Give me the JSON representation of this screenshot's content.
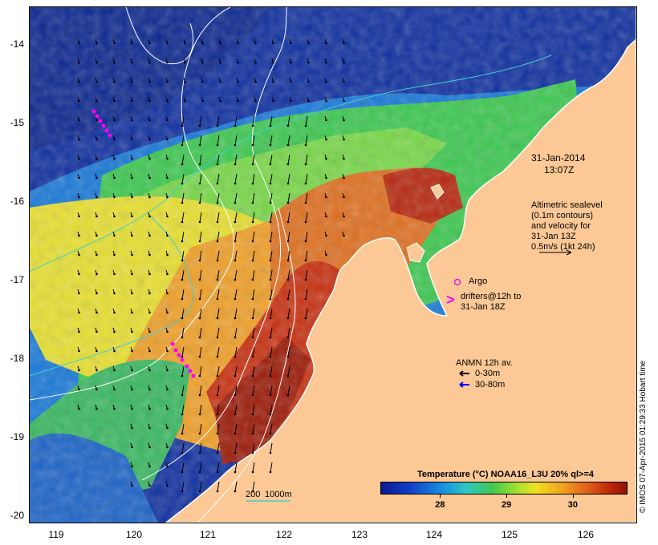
{
  "map": {
    "date": "31-Jan-2014",
    "time": "13:07Z",
    "altimetry_note": [
      "Altimetric sealevel",
      "(0.1m contours)",
      "and velocity for",
      "31-Jan 13Z",
      "0.5m/s (1kt 24h)"
    ],
    "argo_label": "Argo",
    "drifters_label": [
      "drifters@12h to",
      "31-Jan 18Z"
    ],
    "drifter_symbol": ">",
    "anmn_title": "ANMN 12h av.",
    "anmn_shallow": "0-30m",
    "anmn_deep": "30-80m",
    "isobath_labels": [
      "200",
      "1000m"
    ],
    "colorbar_title": "Temperature (°C) NOAA16_L3U 20% ql>=4",
    "colorbar_ticks": [
      "28",
      "29",
      "30"
    ],
    "colorbar_tick_values": [
      28,
      29,
      30
    ],
    "colorbar_range": [
      27.1,
      30.8
    ],
    "credit": "© IMOS 07-Apr-2015 01:29:33 Hobart time",
    "lat_labels": [
      "-14",
      "-15",
      "-16",
      "-17",
      "-18",
      "-19",
      "-20"
    ],
    "lat_values": [
      -14,
      -15,
      -16,
      -17,
      -18,
      -19,
      -20
    ],
    "lon_labels": [
      "119",
      "120",
      "121",
      "122",
      "123",
      "124",
      "125",
      "126"
    ],
    "lon_values": [
      119,
      120,
      121,
      122,
      123,
      124,
      125,
      126
    ],
    "lon_range": [
      118.65,
      126.65
    ],
    "lat_range": [
      -13.55,
      -20.1
    ],
    "colors": {
      "land": "#fcc996",
      "coast_outline": "#ffffff",
      "argo": "#e020e0",
      "drifter": "#ff00ff",
      "anmn_shallow": "#000000",
      "anmn_deep": "#0000ff",
      "contour": "#ffffff",
      "isobath": "#40d0d0"
    }
  }
}
